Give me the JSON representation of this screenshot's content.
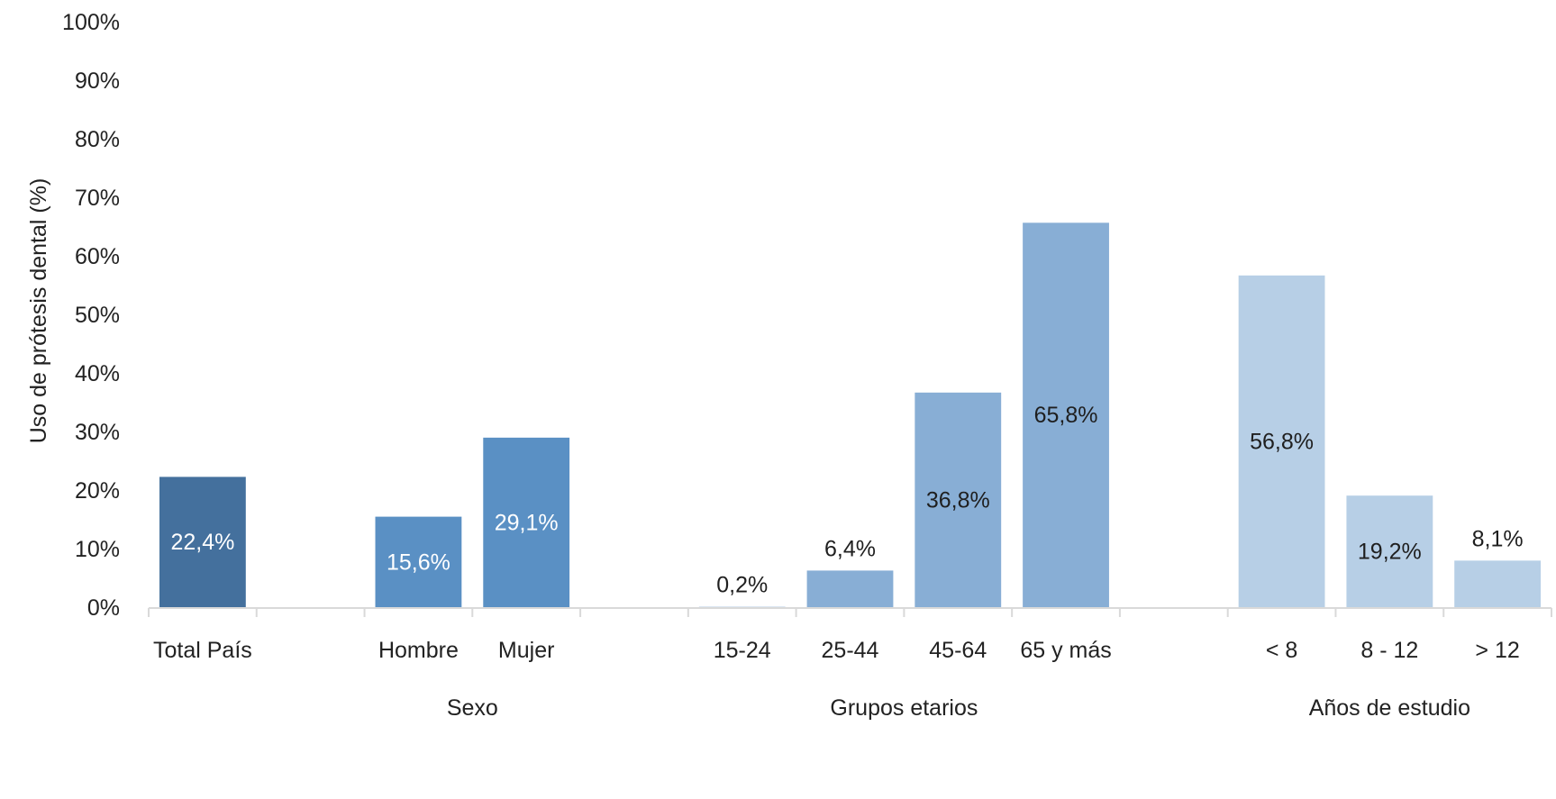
{
  "chart_data": {
    "type": "bar",
    "title": "",
    "xlabel": "",
    "ylabel": "Uso de prótesis dental (%)",
    "ylim": [
      0,
      100
    ],
    "y_ticks": [
      "0%",
      "10%",
      "20%",
      "30%",
      "40%",
      "50%",
      "60%",
      "70%",
      "80%",
      "90%",
      "100%"
    ],
    "grid": false,
    "legend": "none",
    "categories": [
      "Total País",
      "",
      "Hombre",
      "Mujer",
      "",
      "15-24",
      "25-44",
      "45-64",
      "65 y más",
      "",
      "< 8",
      "8 - 12",
      "> 12"
    ],
    "values": [
      22.4,
      null,
      15.6,
      29.1,
      null,
      0.2,
      6.4,
      36.8,
      65.8,
      null,
      56.8,
      19.2,
      8.1
    ],
    "data_labels": [
      "22,4%",
      "",
      "15,6%",
      "29,1%",
      "",
      "0,2%",
      "6,4%",
      "36,8%",
      "65,8%",
      "",
      "56,8%",
      "19,2%",
      "8,1%"
    ],
    "groups": [
      {
        "label": "",
        "categories": [
          "Total País"
        ]
      },
      {
        "label": "Sexo",
        "categories": [
          "Hombre",
          "Mujer"
        ]
      },
      {
        "label": "Grupos etarios",
        "categories": [
          "15-24",
          "25-44",
          "45-64",
          "65 y más"
        ]
      },
      {
        "label": "Años de estudio",
        "categories": [
          "< 8",
          "8 - 12",
          "> 12"
        ]
      }
    ],
    "colors": {
      "total": "#44709d",
      "sexo": "#5a90c4",
      "edad": "#88aed5",
      "estudio": "#b7cfe6",
      "axis": "#d9d9d9",
      "text": "#222222",
      "label_light": "#ffffff",
      "label_dark": "#1f1f1f"
    }
  }
}
